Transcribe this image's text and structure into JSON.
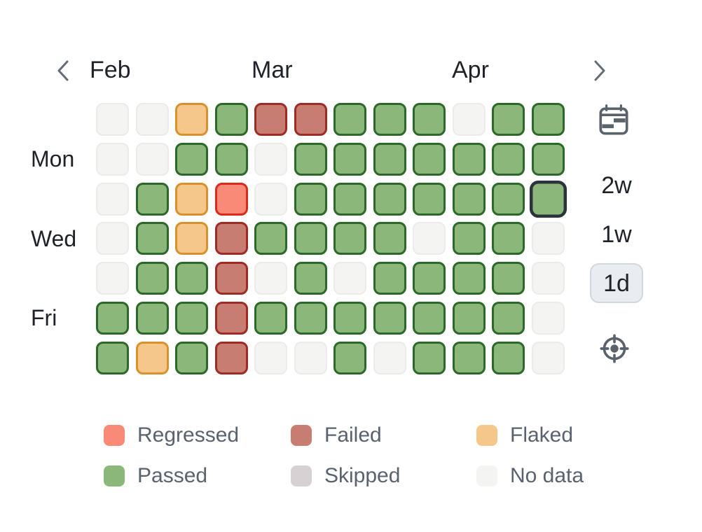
{
  "header": {
    "prev_icon": "chevron-left-icon",
    "next_icon": "chevron-right-icon",
    "months": [
      {
        "label": "Feb"
      },
      {
        "label": "Mar"
      },
      {
        "label": "Apr"
      }
    ]
  },
  "day_labels": [
    {
      "label": "Mon"
    },
    {
      "label": "Wed"
    },
    {
      "label": "Fri"
    }
  ],
  "chart_data": {
    "type": "heatmap",
    "rows": 7,
    "cols": 12,
    "row_meaning": "days of week, top row = Sunday (Mon/Wed/Fri labeled)",
    "col_meaning": "days spanning Feb to Apr",
    "states": [
      "regressed",
      "failed",
      "flaked",
      "passed",
      "skipped",
      "nodata"
    ],
    "values": [
      [
        "nodata",
        "nodata",
        "flaked",
        "passed",
        "failed",
        "failed",
        "passed",
        "passed",
        "passed",
        "nodata",
        "passed",
        "passed"
      ],
      [
        "nodata",
        "nodata",
        "passed",
        "passed",
        "nodata",
        "passed",
        "passed",
        "passed",
        "passed",
        "passed",
        "passed",
        "passed"
      ],
      [
        "nodata",
        "passed",
        "flaked",
        "regressed",
        "nodata",
        "passed",
        "passed",
        "passed",
        "passed",
        "passed",
        "passed",
        "passed"
      ],
      [
        "nodata",
        "passed",
        "flaked",
        "failed",
        "passed",
        "passed",
        "passed",
        "passed",
        "nodata",
        "passed",
        "passed",
        "nodata"
      ],
      [
        "nodata",
        "passed",
        "passed",
        "failed",
        "nodata",
        "passed",
        "nodata",
        "passed",
        "passed",
        "passed",
        "passed",
        "nodata"
      ],
      [
        "passed",
        "passed",
        "passed",
        "failed",
        "passed",
        "passed",
        "passed",
        "passed",
        "passed",
        "passed",
        "passed",
        "nodata"
      ],
      [
        "passed",
        "flaked",
        "passed",
        "failed",
        "nodata",
        "nodata",
        "passed",
        "nodata",
        "passed",
        "passed",
        "passed",
        "nodata"
      ]
    ],
    "selected_cell": {
      "row": 2,
      "col": 11
    }
  },
  "sidebar": {
    "calendar_icon": "calendar-view-icon",
    "locate_icon": "target-icon",
    "ranges": [
      {
        "label": "2w",
        "selected": false
      },
      {
        "label": "1w",
        "selected": false
      },
      {
        "label": "1d",
        "selected": true
      }
    ]
  },
  "legend": {
    "items": [
      {
        "label": "Regressed",
        "status": "regressed"
      },
      {
        "label": "Failed",
        "status": "failed"
      },
      {
        "label": "Flaked",
        "status": "flaked"
      },
      {
        "label": "Passed",
        "status": "passed"
      },
      {
        "label": "Skipped",
        "status": "skipped"
      },
      {
        "label": "No data",
        "status": "nodata"
      }
    ]
  },
  "colors": {
    "regressed": {
      "fill": "#f98a77",
      "border": "#d92a1b"
    },
    "failed": {
      "fill": "#c87d72",
      "border": "#9e2b24"
    },
    "flaked": {
      "fill": "#f6c78b",
      "border": "#d9912c"
    },
    "passed": {
      "fill": "#8bb87a",
      "border": "#2c682a"
    },
    "skipped": {
      "fill": "#d7d1d3",
      "border": "#a8a1a4"
    },
    "nodata": {
      "fill": "#f4f4f2",
      "border": "#ebebe9"
    },
    "selected_border": "#2d333c",
    "text_primary": "#1f2329",
    "text_secondary": "#59626e",
    "icon_color": "#5a626c",
    "range_button_bg": "#e9ecf0",
    "range_button_border": "#d0d7de"
  }
}
